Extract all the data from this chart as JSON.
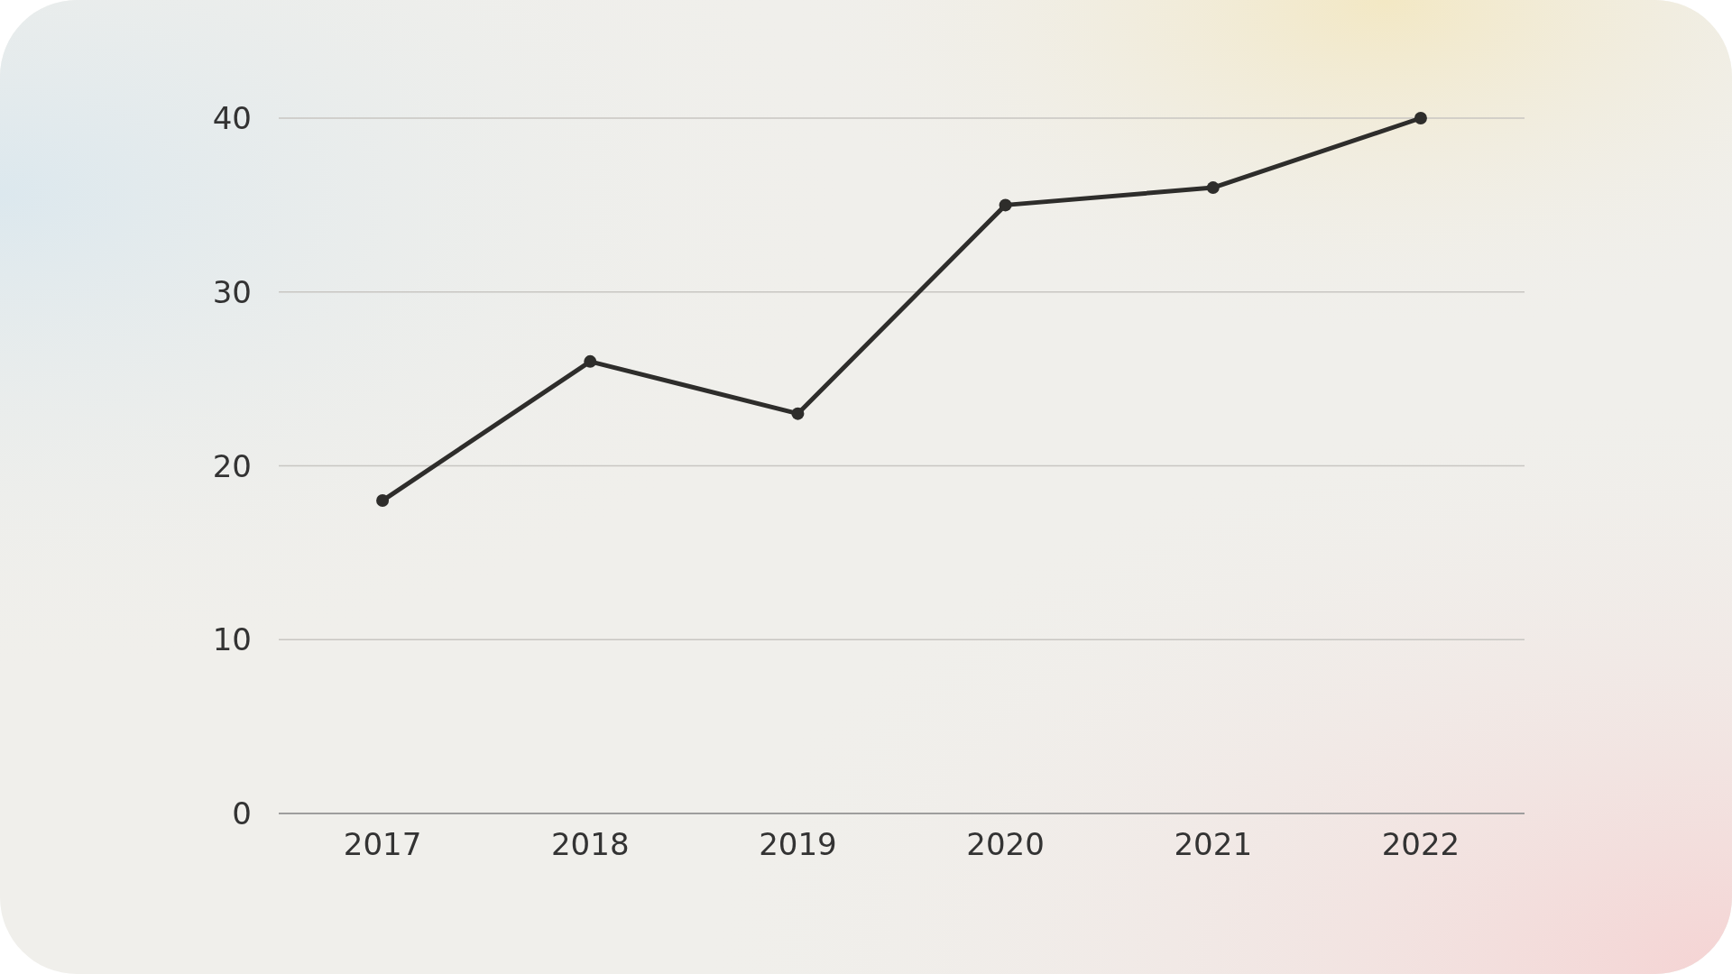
{
  "chart_data": {
    "type": "line",
    "categories": [
      "2017",
      "2018",
      "2019",
      "2020",
      "2021",
      "2022"
    ],
    "series": [
      {
        "color": "#2e2d2b",
        "values": [
          18,
          26,
          23,
          35,
          36,
          40
        ]
      }
    ],
    "ylim": [
      0,
      40
    ],
    "yticks": [
      0,
      10,
      20,
      30,
      40
    ],
    "grid": "y",
    "marker": "circle",
    "line_style": "solid"
  }
}
